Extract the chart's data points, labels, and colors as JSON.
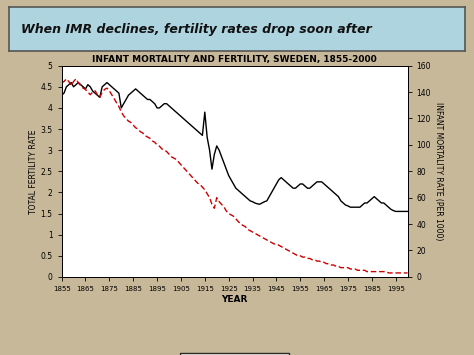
{
  "title": "INFANT MORTALITY AND FERTILITY, SWEDEN, 1855-2000",
  "xlabel": "YEAR",
  "ylabel_left": "TOTAL FERTILITY RATE",
  "ylabel_right": "INFANT MORTALITY RATE (PER 1000)",
  "header_text": "When IMR declines, fertility rates drop soon after",
  "ylim_left": [
    0,
    5
  ],
  "ylim_right": [
    0,
    160
  ],
  "yticks_left": [
    0,
    0.5,
    1,
    1.5,
    2,
    2.5,
    3,
    3.5,
    4,
    4.5,
    5
  ],
  "yticks_right": [
    0,
    20,
    40,
    60,
    80,
    100,
    120,
    140,
    160
  ],
  "xticks": [
    1855,
    1865,
    1875,
    1885,
    1895,
    1905,
    1915,
    1925,
    1935,
    1945,
    1955,
    1965,
    1975,
    1985,
    1995
  ],
  "tfr_color": "#000000",
  "imr_color": "#cc0000",
  "background_color": "#c8b89a",
  "plot_bg": "#ffffff",
  "header_bg": "#aed4e0",
  "tfr_data": {
    "years": [
      1855,
      1856,
      1857,
      1858,
      1859,
      1860,
      1861,
      1862,
      1863,
      1864,
      1865,
      1866,
      1867,
      1868,
      1869,
      1870,
      1871,
      1872,
      1873,
      1874,
      1875,
      1876,
      1877,
      1878,
      1879,
      1880,
      1881,
      1882,
      1883,
      1884,
      1885,
      1886,
      1887,
      1888,
      1889,
      1890,
      1891,
      1892,
      1893,
      1894,
      1895,
      1896,
      1897,
      1898,
      1899,
      1900,
      1901,
      1902,
      1903,
      1904,
      1905,
      1906,
      1907,
      1908,
      1909,
      1910,
      1911,
      1912,
      1913,
      1914,
      1915,
      1916,
      1917,
      1918,
      1919,
      1920,
      1921,
      1922,
      1923,
      1924,
      1925,
      1926,
      1927,
      1928,
      1929,
      1930,
      1931,
      1932,
      1933,
      1934,
      1935,
      1936,
      1937,
      1938,
      1939,
      1940,
      1941,
      1942,
      1943,
      1944,
      1945,
      1946,
      1947,
      1948,
      1949,
      1950,
      1951,
      1952,
      1953,
      1954,
      1955,
      1956,
      1957,
      1958,
      1959,
      1960,
      1961,
      1962,
      1963,
      1964,
      1965,
      1966,
      1967,
      1968,
      1969,
      1970,
      1971,
      1972,
      1973,
      1974,
      1975,
      1976,
      1977,
      1978,
      1979,
      1980,
      1981,
      1982,
      1983,
      1984,
      1985,
      1986,
      1987,
      1988,
      1989,
      1990,
      1991,
      1992,
      1993,
      1994,
      1995,
      1996,
      1997,
      1998,
      1999,
      2000
    ],
    "values": [
      4.3,
      4.35,
      4.5,
      4.55,
      4.6,
      4.5,
      4.55,
      4.6,
      4.55,
      4.5,
      4.45,
      4.55,
      4.5,
      4.4,
      4.35,
      4.3,
      4.25,
      4.5,
      4.55,
      4.6,
      4.55,
      4.5,
      4.45,
      4.4,
      4.35,
      4.0,
      4.1,
      4.2,
      4.3,
      4.35,
      4.4,
      4.45,
      4.4,
      4.35,
      4.3,
      4.25,
      4.2,
      4.2,
      4.15,
      4.1,
      4.0,
      4.0,
      4.05,
      4.1,
      4.1,
      4.05,
      4.0,
      3.95,
      3.9,
      3.85,
      3.8,
      3.75,
      3.7,
      3.65,
      3.6,
      3.55,
      3.5,
      3.45,
      3.4,
      3.35,
      3.9,
      3.3,
      3.0,
      2.55,
      2.9,
      3.1,
      3.0,
      2.85,
      2.7,
      2.55,
      2.4,
      2.3,
      2.2,
      2.1,
      2.05,
      2.0,
      1.95,
      1.9,
      1.85,
      1.8,
      1.78,
      1.75,
      1.73,
      1.72,
      1.75,
      1.78,
      1.8,
      1.9,
      2.0,
      2.1,
      2.2,
      2.3,
      2.35,
      2.3,
      2.25,
      2.2,
      2.15,
      2.1,
      2.1,
      2.15,
      2.2,
      2.2,
      2.15,
      2.1,
      2.1,
      2.15,
      2.2,
      2.25,
      2.25,
      2.25,
      2.2,
      2.15,
      2.1,
      2.05,
      2.0,
      1.95,
      1.9,
      1.8,
      1.75,
      1.7,
      1.68,
      1.65,
      1.65,
      1.65,
      1.65,
      1.65,
      1.7,
      1.75,
      1.75,
      1.8,
      1.85,
      1.9,
      1.85,
      1.8,
      1.75,
      1.75,
      1.7,
      1.65,
      1.6,
      1.57,
      1.55,
      1.55,
      1.55,
      1.55,
      1.55,
      1.55
    ]
  },
  "imr_data": {
    "years": [
      1855,
      1856,
      1857,
      1858,
      1859,
      1860,
      1861,
      1862,
      1863,
      1864,
      1865,
      1866,
      1867,
      1868,
      1869,
      1870,
      1871,
      1872,
      1873,
      1874,
      1875,
      1876,
      1877,
      1878,
      1879,
      1880,
      1881,
      1882,
      1883,
      1884,
      1885,
      1886,
      1887,
      1888,
      1889,
      1890,
      1891,
      1892,
      1893,
      1894,
      1895,
      1896,
      1897,
      1898,
      1899,
      1900,
      1901,
      1902,
      1903,
      1904,
      1905,
      1906,
      1907,
      1908,
      1909,
      1910,
      1911,
      1912,
      1913,
      1914,
      1915,
      1916,
      1917,
      1918,
      1919,
      1920,
      1921,
      1922,
      1923,
      1924,
      1925,
      1926,
      1927,
      1928,
      1929,
      1930,
      1931,
      1932,
      1933,
      1934,
      1935,
      1936,
      1937,
      1938,
      1939,
      1940,
      1941,
      1942,
      1943,
      1944,
      1945,
      1946,
      1947,
      1948,
      1949,
      1950,
      1951,
      1952,
      1953,
      1954,
      1955,
      1956,
      1957,
      1958,
      1959,
      1960,
      1961,
      1962,
      1963,
      1964,
      1965,
      1966,
      1967,
      1968,
      1969,
      1970,
      1971,
      1972,
      1973,
      1974,
      1975,
      1976,
      1977,
      1978,
      1979,
      1980,
      1981,
      1982,
      1983,
      1984,
      1985,
      1986,
      1987,
      1988,
      1989,
      1990,
      1991,
      1992,
      1993,
      1994,
      1995,
      1996,
      1997,
      1998,
      1999,
      2000
    ],
    "values": [
      147,
      148,
      150,
      148,
      145,
      148,
      150,
      147,
      145,
      143,
      142,
      140,
      138,
      140,
      141,
      138,
      136,
      140,
      142,
      143,
      141,
      138,
      135,
      132,
      129,
      125,
      122,
      120,
      118,
      117,
      115,
      113,
      112,
      110,
      109,
      107,
      106,
      105,
      103,
      102,
      100,
      99,
      97,
      96,
      95,
      93,
      91,
      90,
      89,
      87,
      85,
      83,
      81,
      79,
      77,
      75,
      73,
      71,
      70,
      68,
      66,
      63,
      60,
      55,
      52,
      60,
      57,
      55,
      53,
      50,
      48,
      47,
      46,
      44,
      42,
      40,
      39,
      38,
      36,
      35,
      34,
      33,
      32,
      31,
      30,
      29,
      28,
      27,
      26,
      25,
      25,
      24,
      23,
      22,
      21,
      20,
      19,
      18,
      17,
      16,
      16,
      15,
      15,
      14,
      14,
      13,
      13,
      12,
      12,
      11,
      11,
      10,
      10,
      9,
      9,
      8,
      8,
      7,
      7,
      7,
      7,
      6,
      6,
      6,
      5,
      5,
      5,
      5,
      4,
      4,
      4,
      4,
      4,
      4,
      4,
      4,
      4,
      3,
      3,
      3,
      3,
      3,
      3,
      3,
      3,
      3
    ]
  }
}
